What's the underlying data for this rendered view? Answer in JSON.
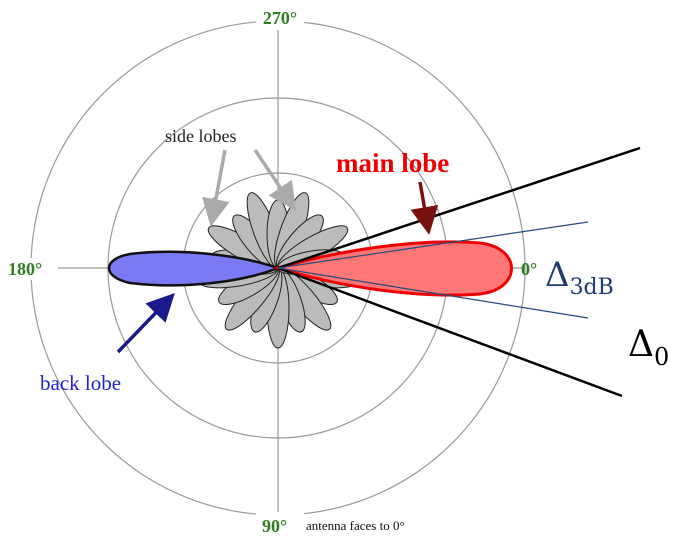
{
  "labels": {
    "angle_270": "270°",
    "angle_180": "180°",
    "angle_0": "0°",
    "angle_90": "90°",
    "note": "antenna faces to 0°",
    "side_lobes": "side lobes",
    "main_lobe": "main lobe",
    "back_lobe": "back lobe",
    "delta_3db": {
      "symbol": "Δ",
      "subscript": "3dB"
    },
    "delta_0": {
      "symbol": "Δ",
      "subscript": "0"
    }
  }
}
